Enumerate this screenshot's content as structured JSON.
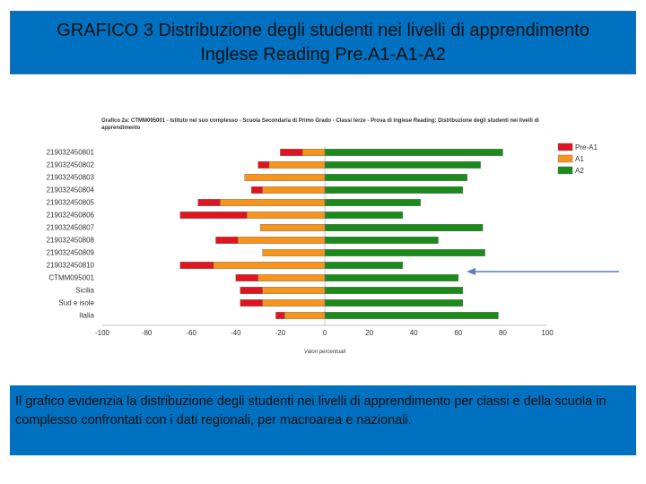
{
  "slide": {
    "title_line1": "GRAFICO 3 Distribuzione degli studenti nei livelli di apprendimento",
    "title_line2": "Inglese Reading Pre.A1-A1-A2",
    "caption": "Il grafico evidenzia la distribuzione degli studenti nei livelli di apprendimento per classi e della scuola in complesso confrontati con i dati regionali, per macroarea e nazionali."
  },
  "chart_data": {
    "type": "bar",
    "stacked": true,
    "orientation": "horizontal",
    "title": "Grafico 2a: CTMM095001 - Istituto nel suo complesso - Scuola Secondaria di Primo Grado - Classi terze - Prova di Inglese Reading: Distribuzione degli studenti nei livelli di apprendimento",
    "xlabel": "Valori percentuali",
    "xlim": [
      -100,
      100
    ],
    "xticks": [
      -100,
      -80,
      -60,
      -40,
      -20,
      0,
      20,
      40,
      60,
      80,
      100
    ],
    "categories": [
      "219032450801",
      "219032450802",
      "219032450803",
      "219032450804",
      "219032450805",
      "219032450806",
      "219032450807",
      "219032450808",
      "219032450809",
      "219032450810",
      "CTMM095001",
      "Sicilia",
      "Sud e isole",
      "Italia"
    ],
    "series": [
      {
        "name": "Pre-A1",
        "color": "#E0141E",
        "values": [
          10,
          5,
          0,
          5,
          10,
          30,
          0,
          10,
          0,
          15,
          10,
          10,
          10,
          4
        ]
      },
      {
        "name": "A1",
        "color": "#F7941D",
        "values": [
          10,
          25,
          36,
          28,
          47,
          35,
          29,
          39,
          28,
          50,
          30,
          28,
          28,
          18
        ]
      },
      {
        "name": "A2",
        "color": "#1A8A1A",
        "values": [
          80,
          70,
          64,
          62,
          43,
          35,
          71,
          51,
          72,
          35,
          60,
          62,
          62,
          78
        ]
      }
    ],
    "legend_position": "top-right",
    "grid": false
  },
  "colors": {
    "header_bg": "#0070C0",
    "arrow": "#5B7FB5"
  }
}
